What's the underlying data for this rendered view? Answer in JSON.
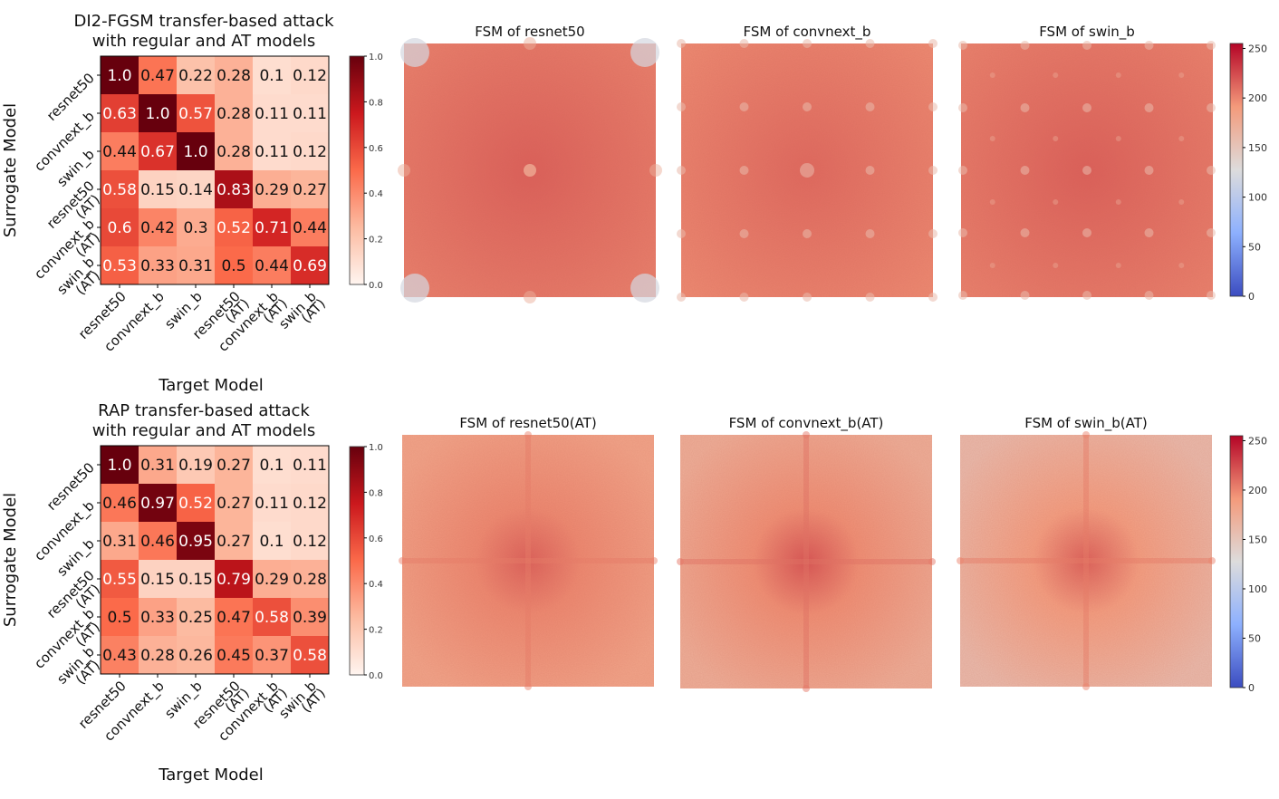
{
  "chart_data": [
    {
      "type": "heatmap",
      "title": "DI2-FGSM transfer-based attack\nwith regular and AT models",
      "xlabel": "Target Model",
      "ylabel": "Surrogate Model",
      "x_categories": [
        "resnet50",
        "convnext_b",
        "swin_b",
        "resnet50\n(AT)",
        "convnext_b\n(AT)",
        "swin_b\n(AT)"
      ],
      "y_categories": [
        "resnet50",
        "convnext_b",
        "swin_b",
        "resnet50\n(AT)",
        "convnext_b\n(AT)",
        "swin_b\n(AT)"
      ],
      "values": [
        [
          1.0,
          0.47,
          0.22,
          0.28,
          0.1,
          0.12
        ],
        [
          0.63,
          1.0,
          0.57,
          0.28,
          0.11,
          0.11
        ],
        [
          0.44,
          0.67,
          1.0,
          0.28,
          0.11,
          0.12
        ],
        [
          0.58,
          0.15,
          0.14,
          0.83,
          0.29,
          0.27
        ],
        [
          0.6,
          0.42,
          0.3,
          0.52,
          0.71,
          0.44
        ],
        [
          0.53,
          0.33,
          0.31,
          0.5,
          0.44,
          0.69
        ]
      ],
      "labels": [
        [
          "1.0",
          "0.47",
          "0.22",
          "0.28",
          "0.1",
          "0.12"
        ],
        [
          "0.63",
          "1.0",
          "0.57",
          "0.28",
          "0.11",
          "0.11"
        ],
        [
          "0.44",
          "0.67",
          "1.0",
          "0.28",
          "0.11",
          "0.12"
        ],
        [
          "0.58",
          "0.15",
          "0.14",
          "0.83",
          "0.29",
          "0.27"
        ],
        [
          "0.6",
          "0.42",
          "0.3",
          "0.52",
          "0.71",
          "0.44"
        ],
        [
          "0.53",
          "0.33",
          "0.31",
          "0.5",
          "0.44",
          "0.69"
        ]
      ],
      "colorbar": {
        "min": 0.0,
        "max": 1.0,
        "ticks": [
          "0.0",
          "0.2",
          "0.4",
          "0.6",
          "0.8",
          "1.0"
        ]
      },
      "colormap": "Reds"
    },
    {
      "type": "heatmap",
      "title": "RAP transfer-based attack\nwith regular and AT models",
      "xlabel": "Target Model",
      "ylabel": "Surrogate Model",
      "x_categories": [
        "resnet50",
        "convnext_b",
        "swin_b",
        "resnet50\n(AT)",
        "convnext_b\n(AT)",
        "swin_b\n(AT)"
      ],
      "y_categories": [
        "resnet50",
        "convnext_b",
        "swin_b",
        "resnet50\n(AT)",
        "convnext_b\n(AT)",
        "swin_b\n(AT)"
      ],
      "values": [
        [
          1.0,
          0.31,
          0.19,
          0.27,
          0.1,
          0.11
        ],
        [
          0.46,
          0.97,
          0.52,
          0.27,
          0.11,
          0.12
        ],
        [
          0.31,
          0.46,
          0.95,
          0.27,
          0.1,
          0.12
        ],
        [
          0.55,
          0.15,
          0.15,
          0.79,
          0.29,
          0.28
        ],
        [
          0.5,
          0.33,
          0.25,
          0.47,
          0.58,
          0.39
        ],
        [
          0.43,
          0.28,
          0.26,
          0.45,
          0.37,
          0.58
        ]
      ],
      "labels": [
        [
          "1.0",
          "0.31",
          "0.19",
          "0.27",
          "0.1",
          "0.11"
        ],
        [
          "0.46",
          "0.97",
          "0.52",
          "0.27",
          "0.11",
          "0.12"
        ],
        [
          "0.31",
          "0.46",
          "0.95",
          "0.27",
          "0.1",
          "0.12"
        ],
        [
          "0.55",
          "0.15",
          "0.15",
          "0.79",
          "0.29",
          "0.28"
        ],
        [
          "0.5",
          "0.33",
          "0.25",
          "0.47",
          "0.58",
          "0.39"
        ],
        [
          "0.43",
          "0.28",
          "0.26",
          "0.45",
          "0.37",
          "0.58"
        ]
      ],
      "colorbar": {
        "min": 0.0,
        "max": 1.0,
        "ticks": [
          "0.0",
          "0.2",
          "0.4",
          "0.6",
          "0.8",
          "1.0"
        ]
      },
      "colormap": "Reds"
    },
    {
      "type": "heatmap",
      "group": "top-row",
      "colormap": "coolwarm",
      "colorbar": {
        "min": 0,
        "max": 255,
        "ticks": [
          "0",
          "50",
          "100",
          "150",
          "200",
          "250"
        ]
      },
      "panels": [
        {
          "title": "FSM of resnet50",
          "base": 212,
          "center_bright": 135,
          "corner_blue": 120,
          "pattern": "corners"
        },
        {
          "title": "FSM of convnext_b",
          "base": 208,
          "center_bright": 160,
          "corner_blue": null,
          "pattern": "grid4"
        },
        {
          "title": "FSM of swin_b",
          "base": 212,
          "center_bright": 160,
          "corner_blue": null,
          "pattern": "grid8"
        }
      ]
    },
    {
      "type": "heatmap",
      "group": "bottom-row",
      "colormap": "coolwarm",
      "colorbar": {
        "min": 0,
        "max": 255,
        "ticks": [
          "0",
          "50",
          "100",
          "150",
          "200",
          "250"
        ]
      },
      "panels": [
        {
          "title": "FSM of resnet50(AT)",
          "base": 182,
          "center_peak": 215,
          "pattern": "cross"
        },
        {
          "title": "FSM of convnext_b(AT)",
          "base": 172,
          "center_peak": 220,
          "pattern": "cross"
        },
        {
          "title": "FSM of swin_b(AT)",
          "base": 160,
          "center_peak": 215,
          "pattern": "cross"
        }
      ]
    }
  ]
}
